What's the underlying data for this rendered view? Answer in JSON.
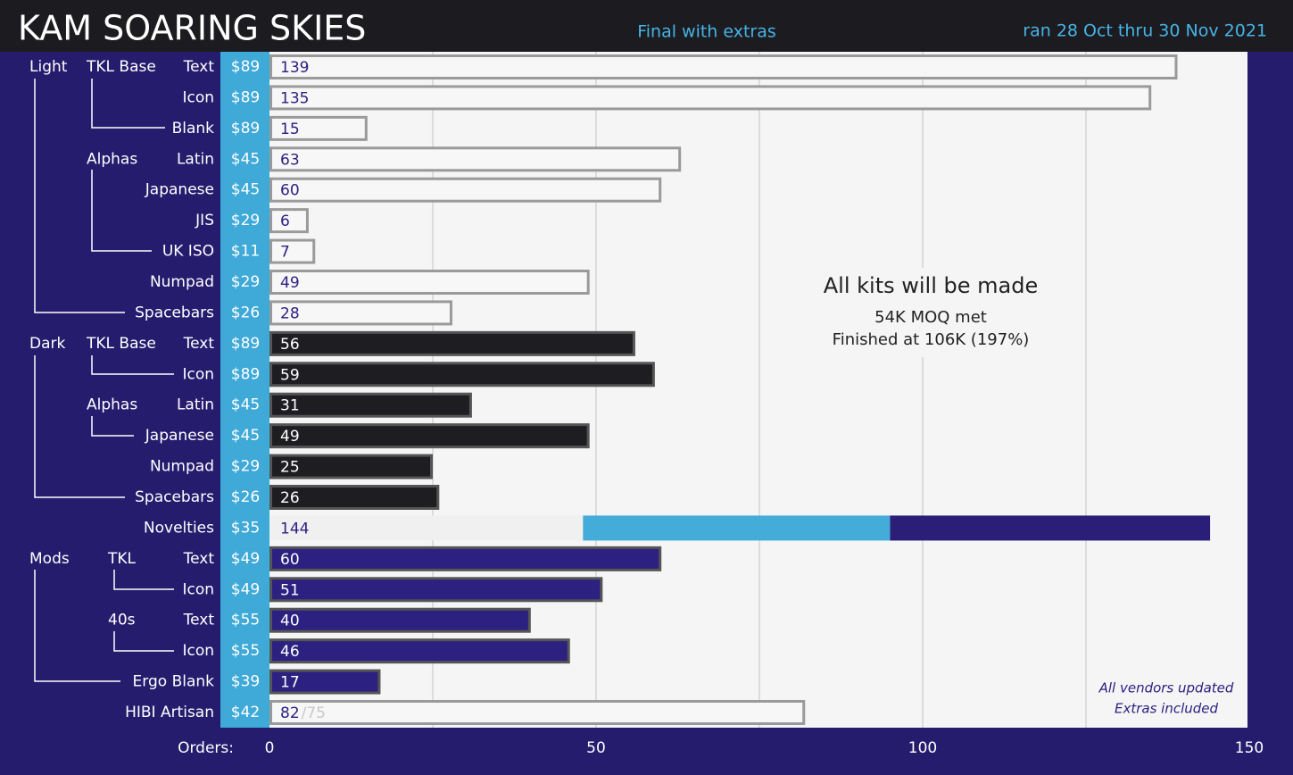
{
  "chart_data": {
    "type": "bar",
    "title": "KAM SOARING SKIES",
    "subtitle": "Final with extras",
    "date_range": "ran 28 Oct thru 30 Nov 2021",
    "x_label": "Orders:",
    "xlim": [
      0,
      150
    ],
    "xticks": [
      0,
      50,
      100,
      150
    ],
    "xgrid": [
      25,
      50,
      75,
      100,
      125
    ],
    "rows": [
      {
        "group": "Light",
        "subgroup": "TKL Base",
        "label": "Text",
        "price": "$89",
        "value": 139,
        "color": "#f7f7f7"
      },
      {
        "label": "Icon",
        "price": "$89",
        "value": 135,
        "color": "#f7f7f7"
      },
      {
        "label": "Blank",
        "price": "$89",
        "value": 15,
        "color": "#f7f7f7"
      },
      {
        "subgroup": "Alphas",
        "label": "Latin",
        "price": "$45",
        "value": 63,
        "color": "#f7f7f7"
      },
      {
        "label": "Japanese",
        "price": "$45",
        "value": 60,
        "color": "#f7f7f7"
      },
      {
        "label": "JIS",
        "price": "$29",
        "value": 6,
        "color": "#f7f7f7"
      },
      {
        "label": "UK ISO",
        "price": "$11",
        "value": 7,
        "color": "#f7f7f7"
      },
      {
        "label": "Numpad",
        "price": "$29",
        "value": 49,
        "color": "#f7f7f7"
      },
      {
        "label": "Spacebars",
        "price": "$26",
        "value": 28,
        "color": "#f7f7f7"
      },
      {
        "group": "Dark",
        "subgroup": "TKL Base",
        "label": "Text",
        "price": "$89",
        "value": 56,
        "color": "#1e1e22"
      },
      {
        "label": "Icon",
        "price": "$89",
        "value": 59,
        "color": "#1e1e22"
      },
      {
        "subgroup": "Alphas",
        "label": "Latin",
        "price": "$45",
        "value": 31,
        "color": "#1e1e22"
      },
      {
        "label": "Japanese",
        "price": "$45",
        "value": 49,
        "color": "#1e1e22"
      },
      {
        "label": "Numpad",
        "price": "$29",
        "value": 25,
        "color": "#1e1e22"
      },
      {
        "label": "Spacebars",
        "price": "$26",
        "value": 26,
        "color": "#1e1e22"
      },
      {
        "label": "Novelties",
        "price": "$35",
        "total": 144,
        "segments": [
          {
            "value": 48,
            "color": "#f0f0f0"
          },
          {
            "value": 47,
            "color": "#44acd9"
          },
          {
            "value": 49,
            "color": "#2a1e78"
          }
        ]
      },
      {
        "group": "Mods",
        "subgroup": "TKL",
        "label": "Text",
        "price": "$49",
        "value": 60,
        "color": "#2c2080"
      },
      {
        "label": "Icon",
        "price": "$49",
        "value": 51,
        "color": "#2c2080"
      },
      {
        "subgroup": "40s",
        "label": "Text",
        "price": "$55",
        "value": 40,
        "color": "#2c2080"
      },
      {
        "label": "Icon",
        "price": "$55",
        "value": 46,
        "color": "#2c2080"
      },
      {
        "label": "Ergo Blank",
        "price": "$39",
        "value": 17,
        "color": "#2c2080"
      },
      {
        "label": "HIBI Artisan",
        "price": "$42",
        "value": 82,
        "extra_label": "/75",
        "color": "#f7f7f7"
      }
    ],
    "annotation": {
      "title": "All kits will be made",
      "lines": [
        "54K MOQ met",
        "Finished at 106K (197%)"
      ]
    },
    "notes": [
      "All vendors updated",
      "Extras included"
    ]
  }
}
